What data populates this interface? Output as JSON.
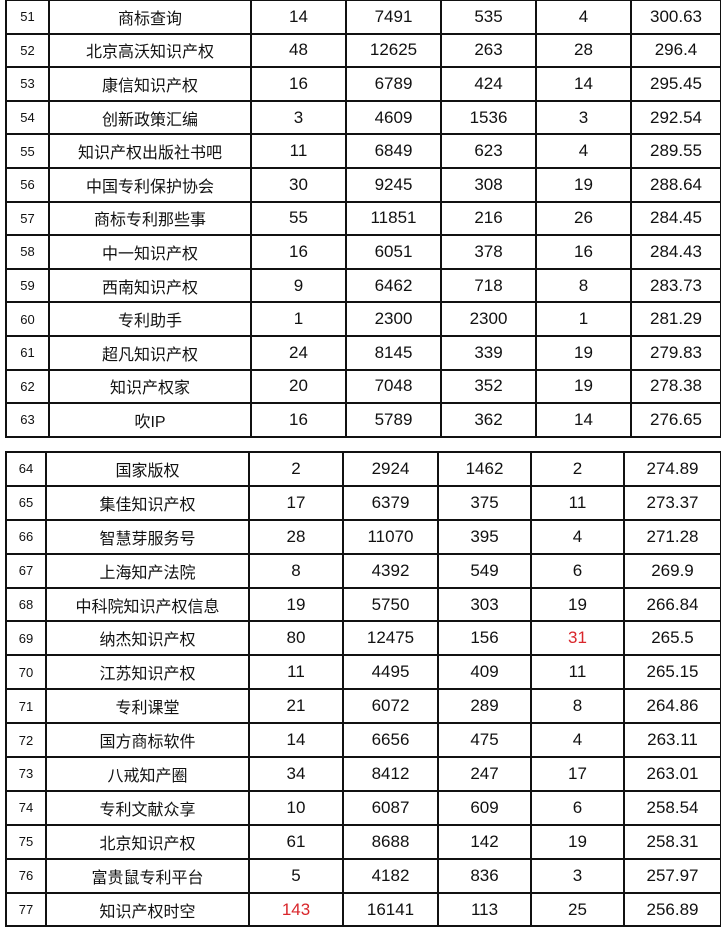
{
  "highlight_color": "#d9262b",
  "tables": [
    {
      "rows": [
        {
          "rank": "51",
          "name": "商标查询",
          "c1": "14",
          "c2": "7491",
          "c3": "535",
          "c4": "4",
          "score": "300.63"
        },
        {
          "rank": "52",
          "name": "北京高沃知识产权",
          "c1": "48",
          "c2": "12625",
          "c3": "263",
          "c4": "28",
          "score": "296.4"
        },
        {
          "rank": "53",
          "name": "康信知识产权",
          "c1": "16",
          "c2": "6789",
          "c3": "424",
          "c4": "14",
          "score": "295.45"
        },
        {
          "rank": "54",
          "name": "创新政策汇编",
          "c1": "3",
          "c2": "4609",
          "c3": "1536",
          "c4": "3",
          "score": "292.54"
        },
        {
          "rank": "55",
          "name": "知识产权出版社书吧",
          "c1": "11",
          "c2": "6849",
          "c3": "623",
          "c4": "4",
          "score": "289.55"
        },
        {
          "rank": "56",
          "name": "中国专利保护协会",
          "c1": "30",
          "c2": "9245",
          "c3": "308",
          "c4": "19",
          "score": "288.64"
        },
        {
          "rank": "57",
          "name": "商标专利那些事",
          "c1": "55",
          "c2": "11851",
          "c3": "216",
          "c4": "26",
          "score": "284.45"
        },
        {
          "rank": "58",
          "name": "中一知识产权",
          "c1": "16",
          "c2": "6051",
          "c3": "378",
          "c4": "16",
          "score": "284.43"
        },
        {
          "rank": "59",
          "name": "西南知识产权",
          "c1": "9",
          "c2": "6462",
          "c3": "718",
          "c4": "8",
          "score": "283.73"
        },
        {
          "rank": "60",
          "name": "专利助手",
          "c1": "1",
          "c2": "2300",
          "c3": "2300",
          "c4": "1",
          "score": "281.29"
        },
        {
          "rank": "61",
          "name": "超凡知识产权",
          "c1": "24",
          "c2": "8145",
          "c3": "339",
          "c4": "19",
          "score": "279.83"
        },
        {
          "rank": "62",
          "name": "知识产权家",
          "c1": "20",
          "c2": "7048",
          "c3": "352",
          "c4": "19",
          "score": "278.38"
        },
        {
          "rank": "63",
          "name": "吹IP",
          "c1": "16",
          "c2": "5789",
          "c3": "362",
          "c4": "14",
          "score": "276.65"
        }
      ]
    },
    {
      "rows": [
        {
          "rank": "64",
          "name": "国家版权",
          "c1": "2",
          "c2": "2924",
          "c3": "1462",
          "c4": "2",
          "score": "274.89"
        },
        {
          "rank": "65",
          "name": "集佳知识产权",
          "c1": "17",
          "c2": "6379",
          "c3": "375",
          "c4": "11",
          "score": "273.37"
        },
        {
          "rank": "66",
          "name": "智慧芽服务号",
          "c1": "28",
          "c2": "11070",
          "c3": "395",
          "c4": "4",
          "score": "271.28"
        },
        {
          "rank": "67",
          "name": "上海知产法院",
          "c1": "8",
          "c2": "4392",
          "c3": "549",
          "c4": "6",
          "score": "269.9"
        },
        {
          "rank": "68",
          "name": "中科院知识产权信息",
          "c1": "19",
          "c2": "5750",
          "c3": "303",
          "c4": "19",
          "score": "266.84"
        },
        {
          "rank": "69",
          "name": "纳杰知识产权",
          "c1": "80",
          "c2": "12475",
          "c3": "156",
          "c4": "31",
          "score": "265.5",
          "highlight": "c4"
        },
        {
          "rank": "70",
          "name": "江苏知识产权",
          "c1": "11",
          "c2": "4495",
          "c3": "409",
          "c4": "11",
          "score": "265.15"
        },
        {
          "rank": "71",
          "name": "专利课堂",
          "c1": "21",
          "c2": "6072",
          "c3": "289",
          "c4": "8",
          "score": "264.86"
        },
        {
          "rank": "72",
          "name": "国方商标软件",
          "c1": "14",
          "c2": "6656",
          "c3": "475",
          "c4": "4",
          "score": "263.11"
        },
        {
          "rank": "73",
          "name": "八戒知产圈",
          "c1": "34",
          "c2": "8412",
          "c3": "247",
          "c4": "17",
          "score": "263.01"
        },
        {
          "rank": "74",
          "name": "专利文献众享",
          "c1": "10",
          "c2": "6087",
          "c3": "609",
          "c4": "6",
          "score": "258.54"
        },
        {
          "rank": "75",
          "name": "北京知识产权",
          "c1": "61",
          "c2": "8688",
          "c3": "142",
          "c4": "19",
          "score": "258.31"
        },
        {
          "rank": "76",
          "name": "富贵鼠专利平台",
          "c1": "5",
          "c2": "4182",
          "c3": "836",
          "c4": "3",
          "score": "257.97"
        },
        {
          "rank": "77",
          "name": "知识产权时空",
          "c1": "143",
          "c2": "16141",
          "c3": "113",
          "c4": "25",
          "score": "256.89",
          "highlight": "c1"
        }
      ]
    }
  ]
}
